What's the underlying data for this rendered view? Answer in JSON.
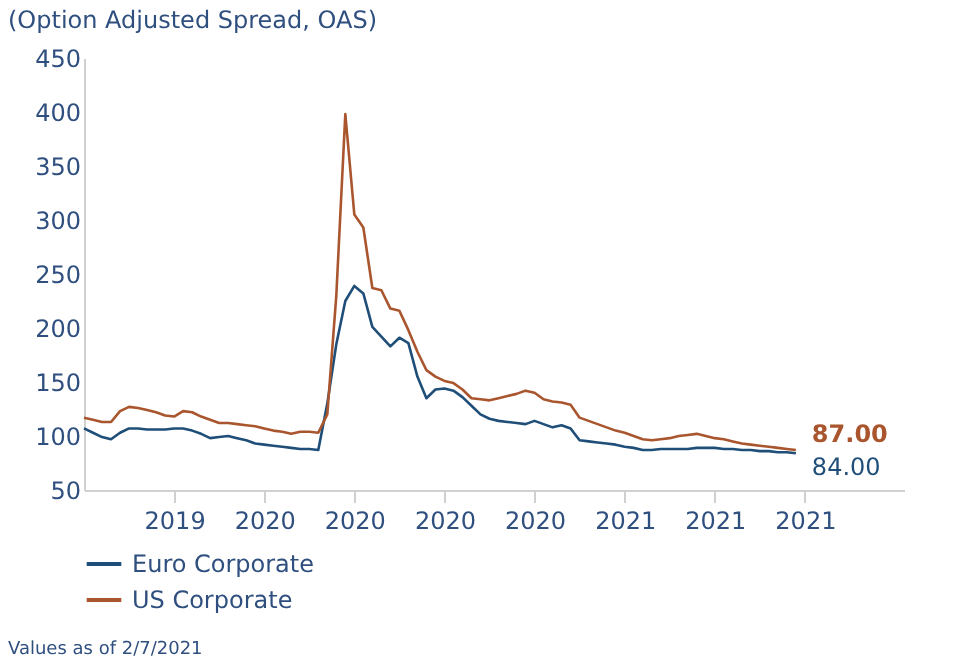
{
  "chart_data": {
    "type": "line",
    "title": "(Option Adjusted Spread, OAS)",
    "categories": [
      null,
      null,
      null,
      null,
      null,
      null,
      null,
      null,
      null,
      null,
      "2019",
      null,
      null,
      null,
      null,
      null,
      null,
      null,
      null,
      null,
      "2020",
      null,
      null,
      null,
      null,
      null,
      null,
      null,
      null,
      null,
      "2020",
      null,
      null,
      null,
      null,
      null,
      null,
      null,
      null,
      null,
      "2020",
      null,
      null,
      null,
      null,
      null,
      null,
      null,
      null,
      null,
      "2020",
      null,
      null,
      null,
      null,
      null,
      null,
      null,
      null,
      null,
      "2021",
      null,
      null,
      null,
      null,
      null,
      null,
      null,
      null,
      null,
      "2021",
      null,
      null,
      null,
      null,
      null,
      null,
      null,
      null,
      null,
      "2021",
      null,
      null,
      null,
      null,
      null,
      null,
      null,
      null,
      null,
      null,
      null
    ],
    "ylim": [
      50,
      450
    ],
    "yticks": [
      50,
      100,
      150,
      200,
      250,
      300,
      350,
      400,
      450
    ],
    "grid": false,
    "legend": "bottom",
    "line_style": "solid",
    "marker": "none",
    "series": [
      {
        "name": "Euro Corporate",
        "color": "#1f4e79",
        "values": [
          107,
          103,
          99,
          97,
          103,
          107,
          107,
          106,
          106,
          106,
          107,
          107,
          105,
          102,
          98,
          99,
          100,
          98,
          96,
          93,
          92,
          91,
          90,
          89,
          88,
          88,
          87,
          130,
          185,
          225,
          239,
          232,
          201,
          192,
          183,
          191,
          186,
          155,
          135,
          143,
          144,
          142,
          136,
          128,
          120,
          116,
          114,
          113,
          112,
          111,
          114,
          111,
          108,
          110,
          107,
          96,
          95,
          94,
          93,
          92,
          90,
          89,
          87,
          87,
          88,
          88,
          88,
          88,
          89,
          89,
          89,
          88,
          88,
          87,
          87,
          86,
          86,
          85,
          85,
          84,
          null,
          null,
          null,
          null,
          null,
          null,
          null,
          null,
          null,
          null,
          null,
          null
        ],
        "value_labels": [
          null,
          null,
          null,
          null,
          null,
          null,
          null,
          null,
          null,
          null,
          null,
          null,
          null,
          null,
          null,
          null,
          null,
          null,
          null,
          null,
          null,
          null,
          null,
          null,
          null,
          null,
          null,
          null,
          null,
          null,
          null,
          null,
          null,
          null,
          null,
          null,
          null,
          null,
          null,
          null,
          null,
          null,
          null,
          null,
          null,
          null,
          null,
          null,
          null,
          null,
          null,
          null,
          null,
          null,
          null,
          null,
          null,
          null,
          null,
          null,
          null,
          null,
          null,
          null,
          null,
          null,
          null,
          null,
          null,
          null,
          null,
          null,
          null,
          null,
          null,
          null,
          null,
          null,
          null,
          "84.00",
          null,
          null,
          null,
          null,
          null,
          null,
          null,
          null,
          null,
          null,
          null,
          null
        ]
      },
      {
        "name": "US Corporate",
        "color": "#a9562e",
        "values": [
          117,
          115,
          113,
          113,
          123,
          127,
          126,
          124,
          122,
          119,
          118,
          123,
          122,
          118,
          115,
          112,
          112,
          111,
          110,
          109,
          107,
          105,
          104,
          102,
          104,
          104,
          103,
          120,
          230,
          398,
          305,
          293,
          237,
          235,
          218,
          216,
          198,
          178,
          161,
          155,
          151,
          149,
          143,
          135,
          134,
          133,
          135,
          137,
          139,
          142,
          140,
          134,
          132,
          131,
          129,
          117,
          114,
          111,
          108,
          105,
          103,
          100,
          97,
          96,
          97,
          98,
          100,
          101,
          102,
          100,
          98,
          97,
          95,
          93,
          92,
          91,
          90,
          89,
          88,
          87,
          null,
          null,
          null,
          null,
          null,
          null,
          null,
          null,
          null,
          null,
          null,
          null
        ],
        "value_labels": [
          null,
          null,
          null,
          null,
          null,
          null,
          null,
          null,
          null,
          null,
          null,
          null,
          null,
          null,
          null,
          null,
          null,
          null,
          null,
          null,
          null,
          null,
          null,
          null,
          null,
          null,
          null,
          null,
          null,
          null,
          null,
          null,
          null,
          null,
          null,
          null,
          null,
          null,
          null,
          null,
          null,
          null,
          null,
          null,
          null,
          null,
          null,
          null,
          null,
          null,
          null,
          null,
          null,
          null,
          null,
          null,
          null,
          null,
          null,
          null,
          null,
          null,
          null,
          null,
          null,
          null,
          null,
          null,
          null,
          null,
          null,
          null,
          null,
          null,
          null,
          null,
          null,
          null,
          null,
          "87.00",
          null,
          null,
          null,
          null,
          null,
          null,
          null,
          null,
          null,
          null,
          null,
          null
        ]
      }
    ],
    "annotations": [
      "Values as of 2/7/2021"
    ]
  }
}
